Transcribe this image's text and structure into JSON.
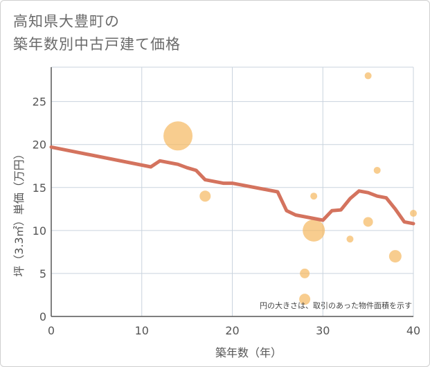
{
  "chart_data": {
    "type": "scatter",
    "title_lines": [
      "高知県大豊町の",
      "築年数別中古戸建て価格"
    ],
    "xlabel": "築年数（年）",
    "ylabel": "坪（3.3㎡）単価（万円）",
    "xlim": [
      0,
      40
    ],
    "ylim": [
      0,
      29
    ],
    "x_ticks": [
      "0",
      "10",
      "20",
      "30",
      "40"
    ],
    "y_ticks": [
      "0",
      "5",
      "10",
      "15",
      "20",
      "25"
    ],
    "note": "円の大きさは、取引のあった物件面積を示す",
    "colors": {
      "line": "#d4735e",
      "bubble": "#f5b860",
      "grid": "#c9d3de"
    },
    "line": {
      "name": "trend",
      "x": [
        0,
        11,
        12,
        14,
        15,
        16,
        17,
        19,
        20,
        25,
        26,
        27,
        29,
        30,
        31,
        32,
        33,
        34,
        35,
        36,
        37,
        38,
        39,
        40
      ],
      "y": [
        19.7,
        17.4,
        18.1,
        17.7,
        17.3,
        17.0,
        15.9,
        15.5,
        15.5,
        14.5,
        12.3,
        11.8,
        11.4,
        11.2,
        12.3,
        12.4,
        13.7,
        14.6,
        14.4,
        14.0,
        13.8,
        12.5,
        11.0,
        10.8
      ]
    },
    "bubbles": [
      {
        "x": 14,
        "y": 21.0,
        "size": 21
      },
      {
        "x": 17,
        "y": 14.0,
        "size": 8
      },
      {
        "x": 28,
        "y": 5.0,
        "size": 7
      },
      {
        "x": 28,
        "y": 2.0,
        "size": 8
      },
      {
        "x": 29,
        "y": 10.0,
        "size": 16
      },
      {
        "x": 29,
        "y": 14.0,
        "size": 5
      },
      {
        "x": 33,
        "y": 9.0,
        "size": 5
      },
      {
        "x": 35,
        "y": 28.0,
        "size": 5
      },
      {
        "x": 35,
        "y": 11.0,
        "size": 7
      },
      {
        "x": 36,
        "y": 17.0,
        "size": 5
      },
      {
        "x": 38,
        "y": 7.0,
        "size": 9
      },
      {
        "x": 40,
        "y": 12.0,
        "size": 5
      }
    ]
  }
}
